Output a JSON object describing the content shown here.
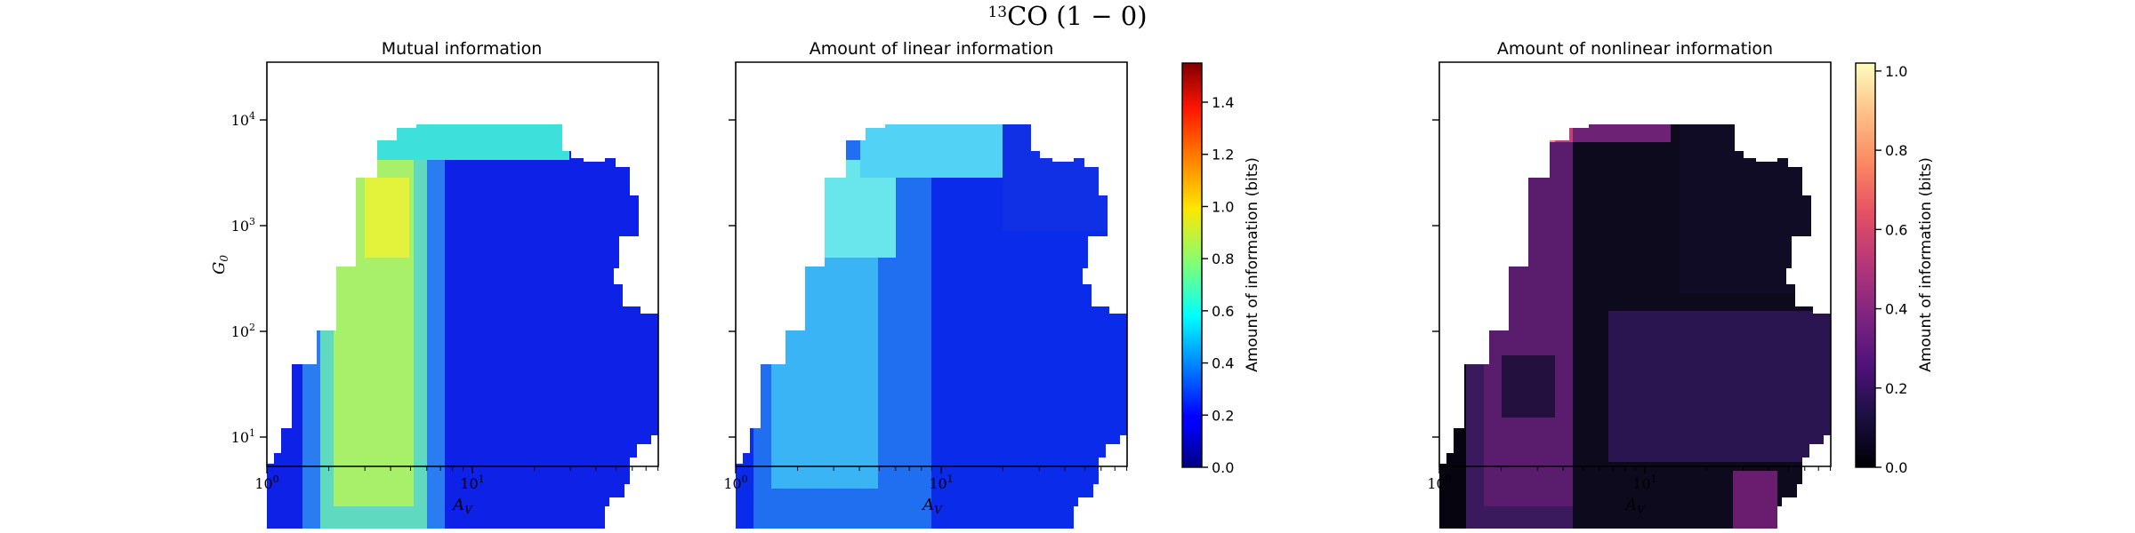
{
  "figure": {
    "suptitle_main": "CO (1 − 0)",
    "suptitle_sup": "13"
  },
  "chart_data": [
    {
      "type": "heatmap",
      "title": "Mutual information",
      "xlabel": "A",
      "xlabel_sub": "V",
      "ylabel": "G",
      "ylabel_sub": "0",
      "x_scale": "log",
      "y_scale": "log",
      "xlim": [
        1,
        70
      ],
      "ylim": [
        5.5,
        35000
      ],
      "x_ticks": [
        {
          "value": 1,
          "base": "10",
          "exp": "0"
        },
        {
          "value": 10,
          "base": "10",
          "exp": "1"
        }
      ],
      "y_ticks": [
        {
          "value": 10,
          "base": "10",
          "exp": "1"
        },
        {
          "value": 100,
          "base": "10",
          "exp": "2"
        },
        {
          "value": 1000,
          "base": "10",
          "exp": "3"
        },
        {
          "value": 10000,
          "base": "10",
          "exp": "4"
        }
      ],
      "colormap": "jet",
      "value_range": [
        0,
        1.55
      ]
    },
    {
      "type": "heatmap",
      "title": "Amount of linear information",
      "xlabel": "A",
      "xlabel_sub": "V",
      "x_scale": "log",
      "y_scale": "log",
      "xlim": [
        1,
        70
      ],
      "ylim": [
        5.5,
        35000
      ],
      "x_ticks": [
        {
          "value": 1,
          "base": "10",
          "exp": "0"
        },
        {
          "value": 10,
          "base": "10",
          "exp": "1"
        }
      ],
      "colormap": "jet",
      "value_range": [
        0,
        1.55
      ],
      "colorbar": {
        "label": "Amount of information (bits)",
        "ticks": [
          "0.0",
          "0.2",
          "0.4",
          "0.6",
          "0.8",
          "1.0",
          "1.2",
          "1.4"
        ],
        "tick_values": [
          0,
          0.2,
          0.4,
          0.6,
          0.8,
          1.0,
          1.2,
          1.4
        ],
        "range": [
          0,
          1.55
        ]
      }
    },
    {
      "type": "heatmap",
      "title": "Amount of nonlinear information",
      "xlabel": "A",
      "xlabel_sub": "V",
      "x_scale": "log",
      "y_scale": "log",
      "xlim": [
        1,
        70
      ],
      "ylim": [
        5.5,
        35000
      ],
      "x_ticks": [
        {
          "value": 1,
          "base": "10",
          "exp": "0"
        },
        {
          "value": 10,
          "base": "10",
          "exp": "1"
        }
      ],
      "colormap": "magma",
      "value_range": [
        0,
        1.02
      ],
      "colorbar": {
        "label": "Amount of information (bits)",
        "ticks": [
          "0.0",
          "0.2",
          "0.4",
          "0.6",
          "0.8",
          "1.0"
        ],
        "tick_values": [
          0,
          0.2,
          0.4,
          0.6,
          0.8,
          1.0
        ],
        "range": [
          0,
          1.02
        ]
      }
    }
  ]
}
